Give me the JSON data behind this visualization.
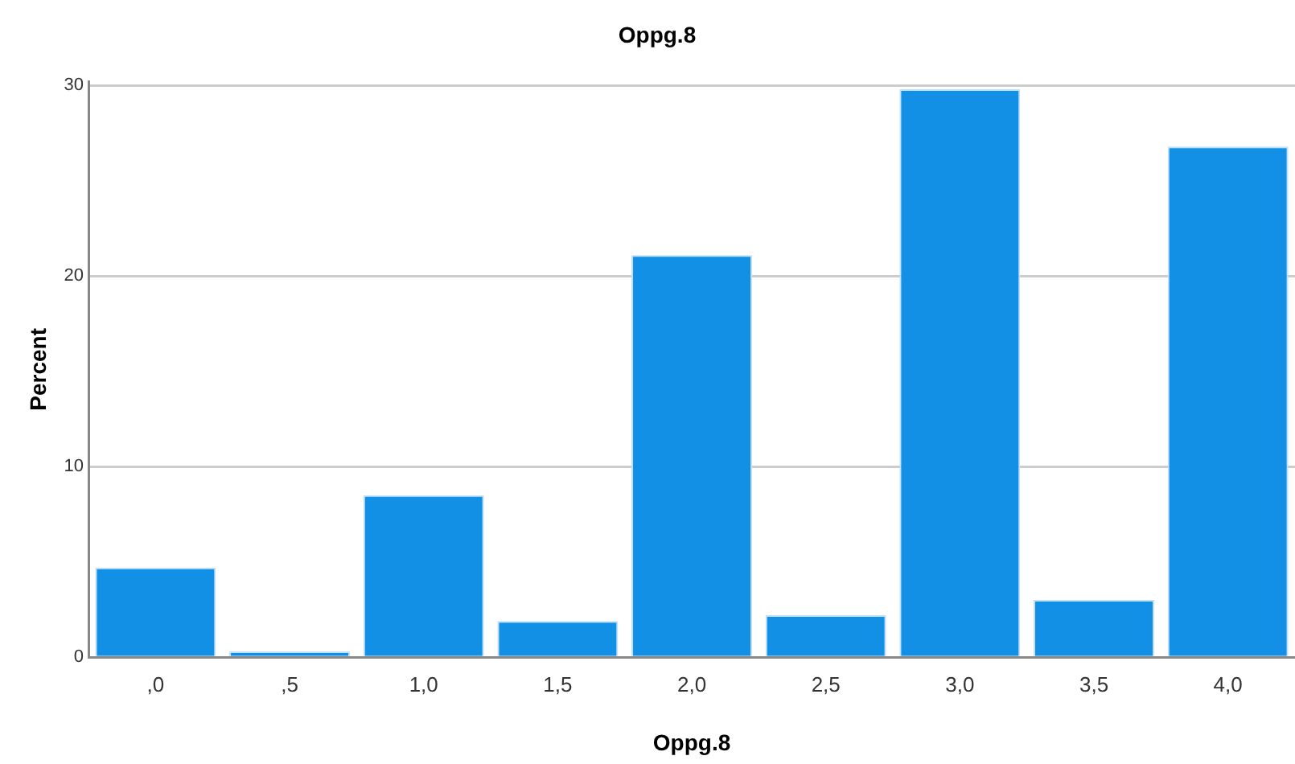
{
  "chart_data": {
    "type": "bar",
    "title": "Oppg.8",
    "xlabel": "Oppg.8",
    "ylabel": "Percent",
    "categories": [
      ",0",
      ",5",
      "1,0",
      "1,5",
      "2,0",
      "2,5",
      "3,0",
      "3,5",
      "4,0"
    ],
    "values": [
      4.7,
      0.3,
      8.5,
      1.9,
      21.1,
      2.2,
      29.8,
      3.0,
      26.8
    ],
    "color": "#1290e6",
    "ylim": [
      0,
      30.2
    ],
    "yticks": [
      0,
      10,
      20,
      30
    ],
    "grid": "y"
  }
}
